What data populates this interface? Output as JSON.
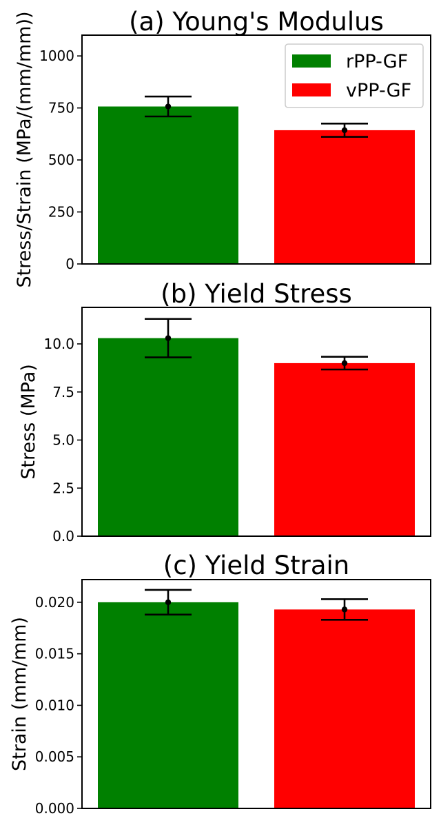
{
  "chart_data": [
    {
      "type": "bar",
      "title": "(a) Young's Modulus",
      "xlabel": "",
      "ylabel": "Stress/Strain (MPa/(mm/mm))",
      "categories": [
        "rPP-GF",
        "vPP-GF"
      ],
      "values": [
        757,
        643
      ],
      "errors": [
        48,
        32
      ],
      "colors": [
        "#008000",
        "#ff0000"
      ],
      "ylim": [
        0,
        1100
      ],
      "yticks": [
        0,
        250,
        500,
        750,
        1000
      ],
      "ytick_labels": [
        "0",
        "250",
        "500",
        "750",
        "1000"
      ],
      "legend": {
        "placement": "top-right",
        "entries": [
          {
            "label": "rPP-GF",
            "color": "#008000"
          },
          {
            "label": "vPP-GF",
            "color": "#ff0000"
          }
        ]
      },
      "grid": false
    },
    {
      "type": "bar",
      "title": "(b) Yield Stress",
      "xlabel": "",
      "ylabel": "Stress (MPa)",
      "categories": [
        "rPP-GF",
        "vPP-GF"
      ],
      "values": [
        10.3,
        9.0
      ],
      "errors": [
        1.0,
        0.33
      ],
      "colors": [
        "#008000",
        "#ff0000"
      ],
      "ylim": [
        0,
        11.9
      ],
      "yticks": [
        0,
        2.5,
        5,
        7.5,
        10
      ],
      "ytick_labels": [
        "0.0",
        "2.5",
        "5.0",
        "7.5",
        "10.0"
      ],
      "grid": false
    },
    {
      "type": "bar",
      "title": "(c) Yield Strain",
      "xlabel": "",
      "ylabel": "Strain (mm/mm)",
      "categories": [
        "rPP-GF",
        "vPP-GF"
      ],
      "values": [
        0.02,
        0.0193
      ],
      "errors": [
        0.0012,
        0.001
      ],
      "colors": [
        "#008000",
        "#ff0000"
      ],
      "ylim": [
        0,
        0.0222
      ],
      "yticks": [
        0,
        0.005,
        0.01,
        0.015,
        0.02
      ],
      "ytick_labels": [
        "0.000",
        "0.005",
        "0.010",
        "0.015",
        "0.020"
      ],
      "grid": false
    }
  ]
}
